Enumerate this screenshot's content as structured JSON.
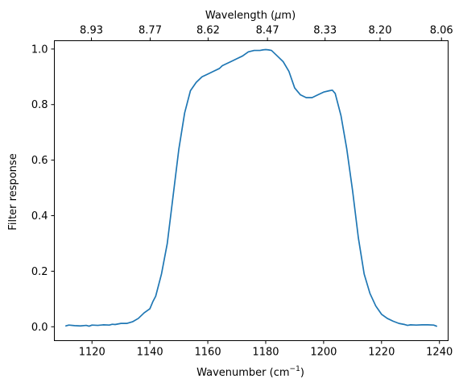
{
  "chart_data": {
    "type": "line",
    "xlabel": "Wavenumber (cm",
    "xlabel_sup": "−1",
    "xlabel_end": ")",
    "ylabel": "Filter response",
    "top_xlabel_pre": "Wavelength (",
    "top_xlabel_mu": "μ",
    "top_xlabel_post": "m)",
    "xlim": [
      1107,
      1243
    ],
    "ylim": [
      -0.05,
      1.03
    ],
    "xticks": [
      1120,
      1140,
      1160,
      1180,
      1200,
      1220,
      1240
    ],
    "xtick_labels": [
      "1120",
      "1140",
      "1160",
      "1180",
      "1200",
      "1220",
      "1240"
    ],
    "yticks": [
      0.0,
      0.2,
      0.4,
      0.6,
      0.8,
      1.0
    ],
    "ytick_labels": [
      "0.0",
      "0.2",
      "0.4",
      "0.6",
      "0.8",
      "1.0"
    ],
    "top_ticks_wavenumber": [
      1119.8,
      1140.1,
      1160.1,
      1180.6,
      1200.5,
      1219.5,
      1240.7
    ],
    "top_tick_labels": [
      "8.93",
      "8.77",
      "8.62",
      "8.47",
      "8.33",
      "8.20",
      "8.06"
    ],
    "line_color": "#1f77b4",
    "grid": false,
    "series": [
      {
        "x": [
          1111,
          1112,
          1114,
          1116,
          1118,
          1119,
          1120,
          1122,
          1124,
          1126,
          1127,
          1128,
          1130,
          1132,
          1134,
          1136,
          1138,
          1140,
          1141,
          1142,
          1144,
          1146,
          1148,
          1150,
          1152,
          1154,
          1156,
          1158,
          1160,
          1162,
          1164,
          1165,
          1166,
          1168,
          1170,
          1172,
          1174,
          1176,
          1178,
          1179,
          1180,
          1181,
          1182,
          1184,
          1186,
          1188,
          1190,
          1192,
          1194,
          1196,
          1198,
          1200,
          1202,
          1203,
          1204,
          1206,
          1208,
          1210,
          1212,
          1214,
          1216,
          1218,
          1220,
          1222,
          1224,
          1226,
          1228,
          1229,
          1230,
          1232,
          1234,
          1236,
          1238,
          1239
        ],
        "y": [
          0.003,
          0.006,
          0.004,
          0.003,
          0.005,
          0.002,
          0.006,
          0.005,
          0.007,
          0.006,
          0.009,
          0.008,
          0.012,
          0.012,
          0.018,
          0.03,
          0.05,
          0.065,
          0.09,
          0.11,
          0.19,
          0.3,
          0.47,
          0.64,
          0.77,
          0.85,
          0.88,
          0.9,
          0.91,
          0.92,
          0.93,
          0.94,
          0.945,
          0.955,
          0.965,
          0.975,
          0.99,
          0.995,
          0.995,
          0.997,
          0.998,
          0.997,
          0.995,
          0.975,
          0.955,
          0.92,
          0.86,
          0.835,
          0.825,
          0.825,
          0.835,
          0.845,
          0.85,
          0.852,
          0.84,
          0.76,
          0.64,
          0.49,
          0.32,
          0.19,
          0.12,
          0.075,
          0.045,
          0.03,
          0.02,
          0.012,
          0.008,
          0.005,
          0.007,
          0.006,
          0.007,
          0.007,
          0.006,
          0.002
        ]
      }
    ]
  }
}
